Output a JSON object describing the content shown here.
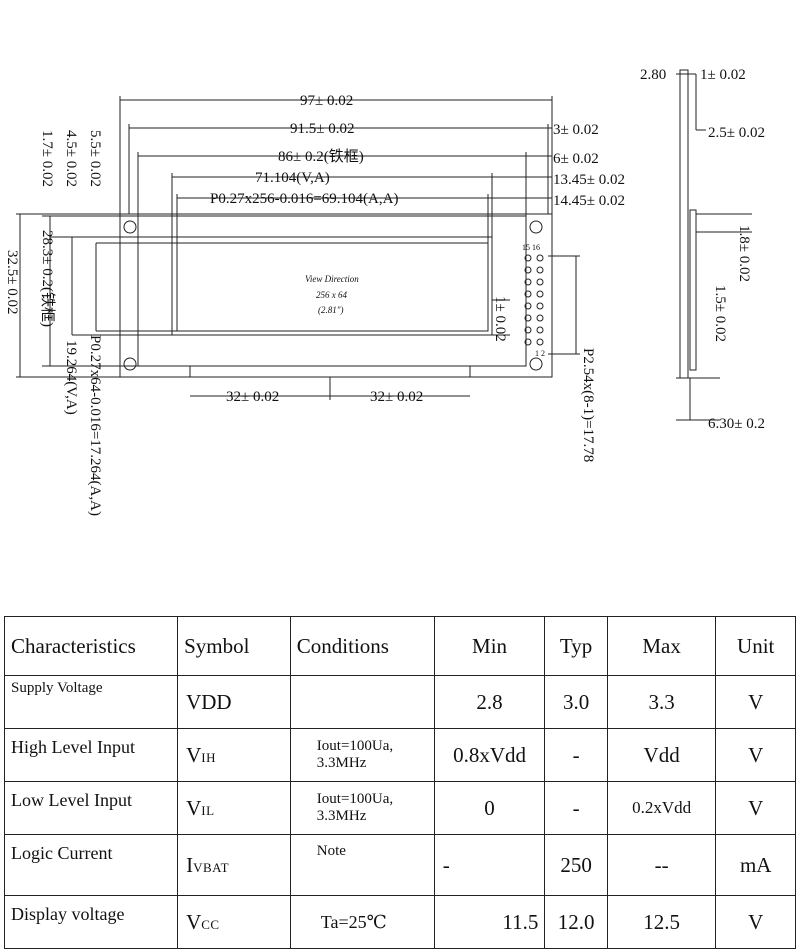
{
  "drawing": {
    "top": {
      "d97": "97± 0.02",
      "d915": "91.5± 0.02",
      "d86": "86± 0.2(铁框)",
      "d71": "71.104(V,A)",
      "dP027": "P0.27x256-0.016=69.104(A,A)",
      "d3": "3± 0.02",
      "d6": "6± 0.02",
      "d1345": "13.45± 0.02",
      "d1445": "14.45± 0.02"
    },
    "left": {
      "d55": "5.5± 0.02",
      "d45": "4.5± 0.02",
      "d17": "1.7± 0.02",
      "d325": "32.5± 0.02",
      "d283": "28.3± 0.2(铁框)",
      "d19": "19.264(V,A)",
      "dP027v": "P0.27x64-0.016=17.264(A,A)"
    },
    "bottom": {
      "d32a": "32± 0.02",
      "d32b": "32± 0.02"
    },
    "right": {
      "d1": "1± 0.02",
      "pitch": "P2.54x(8-1)=17.78",
      "pin_top": "15 16",
      "pin_bottom": "1 2"
    },
    "center": {
      "line1": "View Direction",
      "line2": "256  x 64",
      "line3": "(2.81\")"
    },
    "side": {
      "d280": "2.80",
      "d1": "1± 0.02",
      "d25": "2.5± 0.02",
      "d18": "1.8± 0.02",
      "d15": "1.5± 0.02",
      "d630": "6.30± 0.2"
    }
  },
  "table": {
    "headers": [
      "Characteristics",
      "Symbol",
      "Conditions",
      "Min",
      "Typ",
      "Max",
      "Unit"
    ],
    "rows": [
      {
        "name": "Supply Voltage",
        "sym": "VDD",
        "sym_sub": "",
        "cond1": "",
        "cond2": "",
        "min": "2.8",
        "typ": "3.0",
        "max": "3.3",
        "unit": "V"
      },
      {
        "name": "High Level Input",
        "sym": "V",
        "sym_sub": "IH",
        "cond1": "Iout=100Ua,",
        "cond2": "3.3MHz",
        "min": "0.8xVdd",
        "typ": "-",
        "max": "Vdd",
        "unit": "V"
      },
      {
        "name": "Low Level Input",
        "sym": "V",
        "sym_sub": "IL",
        "cond1": "Iout=100Ua,",
        "cond2": "3.3MHz",
        "min": "0",
        "typ": "-",
        "max": "0.2xVdd",
        "unit": "V"
      },
      {
        "name": "Logic Current",
        "sym": "I",
        "sym_sub": "VBAT",
        "cond1": "Note",
        "cond2": "",
        "min": "-",
        "typ": "250",
        "max": "--",
        "unit": "mA"
      },
      {
        "name": "Display voltage",
        "sym": "V",
        "sym_sub": "CC",
        "cond1": "Ta=25℃",
        "cond2": "",
        "min": "11.5",
        "typ": "12.0",
        "max": "12.5",
        "unit": "V"
      }
    ]
  }
}
